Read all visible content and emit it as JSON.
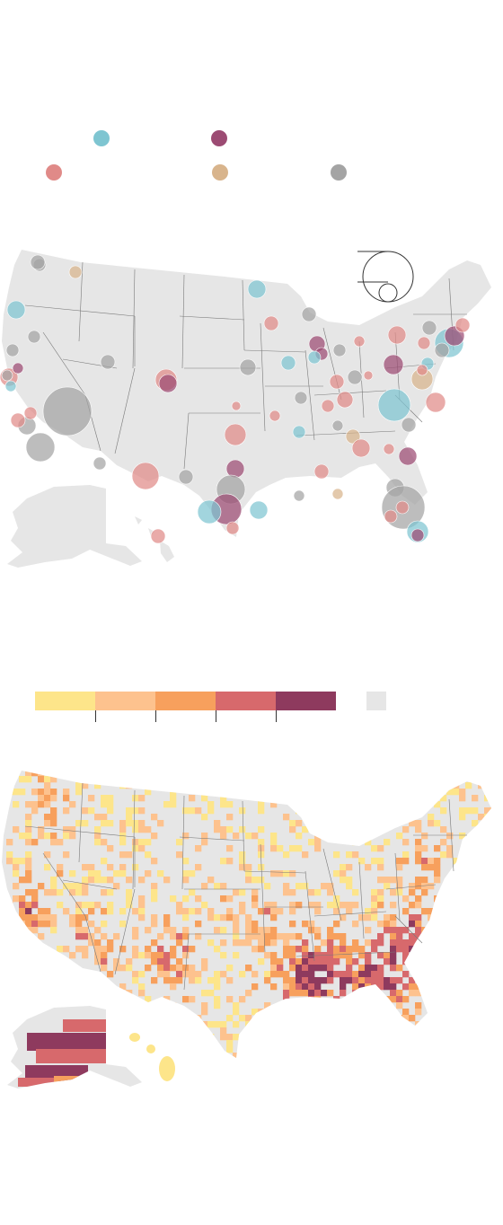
{
  "point_map": {
    "legend": [
      {
        "color": "#7ec5d1"
      },
      {
        "color": "#9c4b73"
      },
      {
        "color": "#e08a88"
      },
      {
        "color": "#d8b48c"
      },
      {
        "color": "#a4a4a4"
      }
    ],
    "land_color": "#e6e6e6",
    "border_color": "#7a7a7a"
  },
  "choropleth": {
    "scale_colors": [
      "#fde58a",
      "#fdc28e",
      "#f7a05d",
      "#d7696c",
      "#8e3a5e"
    ],
    "no_data_color": "#e6e6e6"
  }
}
